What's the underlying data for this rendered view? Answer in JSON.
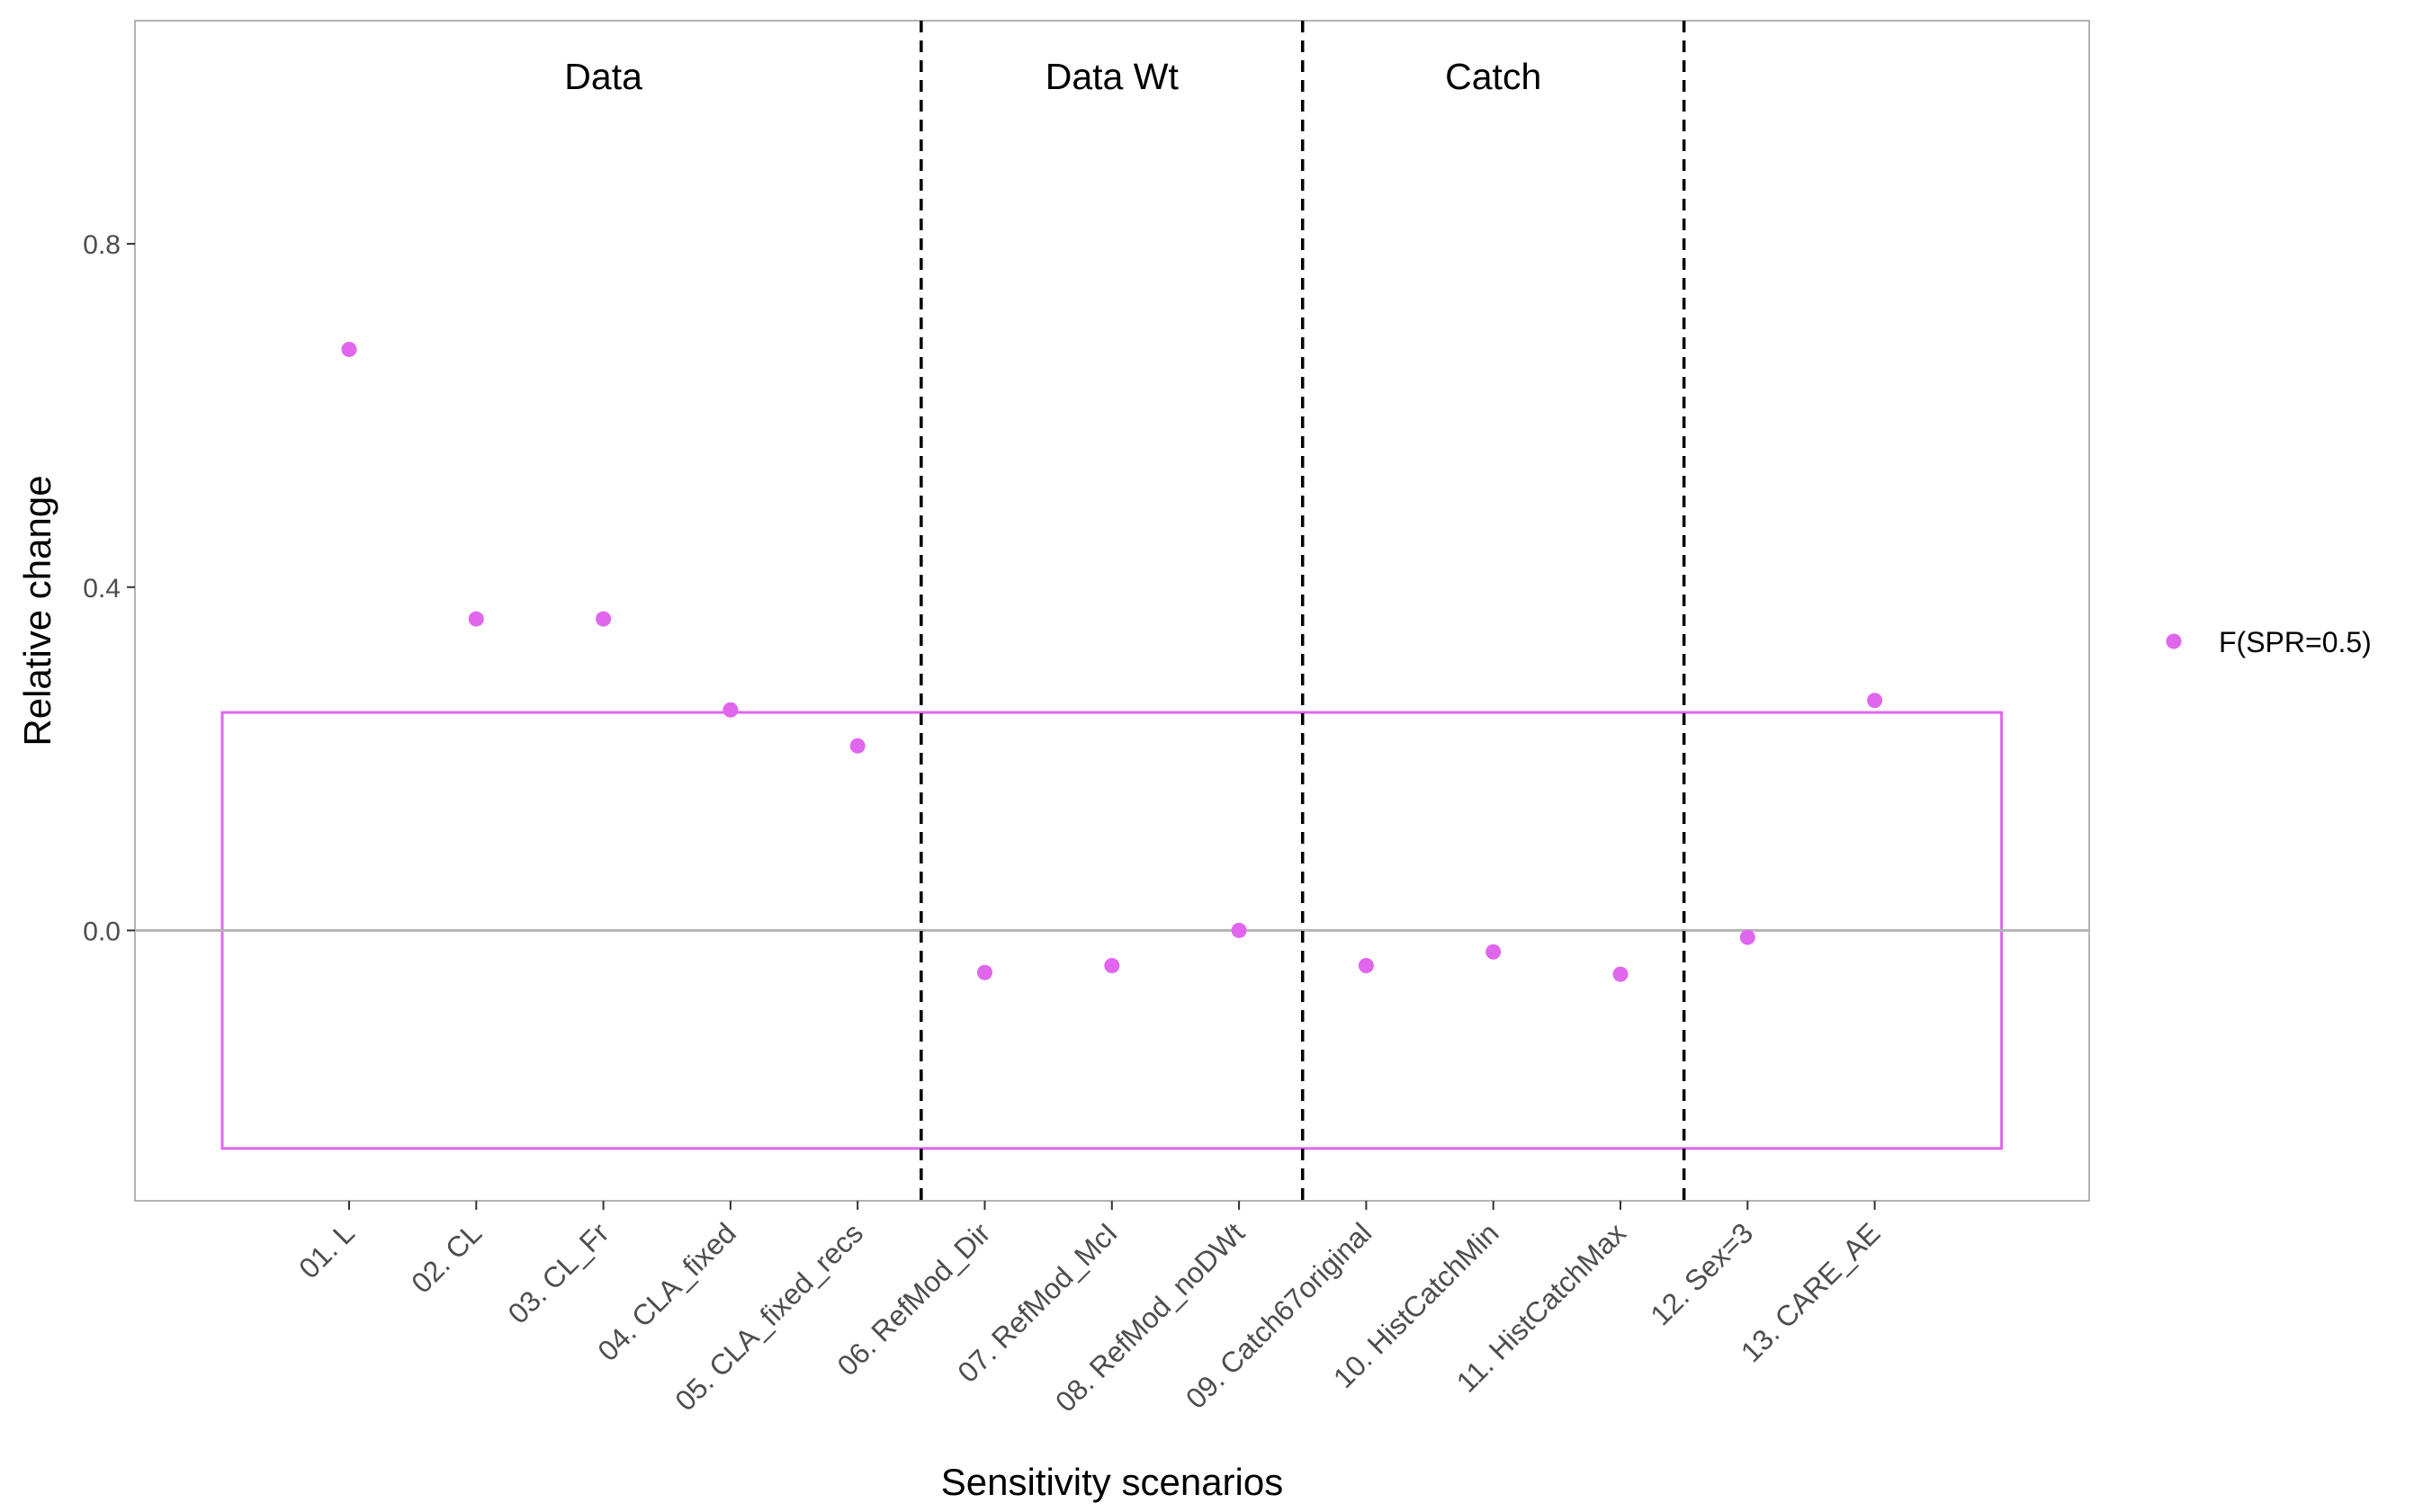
{
  "chart_data": {
    "type": "scatter",
    "xlabel": "Sensitivity scenarios",
    "ylabel": "Relative change",
    "categories": [
      "01. L",
      "02. CL",
      "03. CL_Fr",
      "04. CLA_fixed",
      "05. CLA_fixed_recs",
      "06. RefMod_Dir",
      "07. RefMod_McI",
      "08. RefMod_noDWt",
      "09. Catch67original",
      "10. HistCatchMin",
      "11. HistCatchMax",
      "12. Sex=3",
      "13. CARE_AE"
    ],
    "series": [
      {
        "name": "F(SPR=0.5)",
        "color": "#E066EE",
        "values": [
          0.677,
          0.363,
          0.363,
          0.257,
          0.215,
          -0.049,
          -0.041,
          0.0,
          -0.041,
          -0.025,
          -0.051,
          -0.008,
          0.268
        ]
      }
    ],
    "yticks": [
      0.0,
      0.4,
      0.8
    ],
    "ytick_labels": [
      "0.0",
      "0.4",
      "0.8"
    ],
    "ylim": [
      -0.315,
      1.06
    ],
    "groups": [
      {
        "label": "Data",
        "center": 3
      },
      {
        "label": "Data Wt",
        "center": 7
      },
      {
        "label": "Catch",
        "center": 10
      }
    ],
    "group_dividers_between": [
      5,
      8,
      11
    ],
    "reference_band": {
      "ymin": -0.254,
      "ymax": 0.254,
      "color": "#E066EE"
    },
    "zero_line": 0.0,
    "grid": false,
    "legend_position": "right"
  }
}
